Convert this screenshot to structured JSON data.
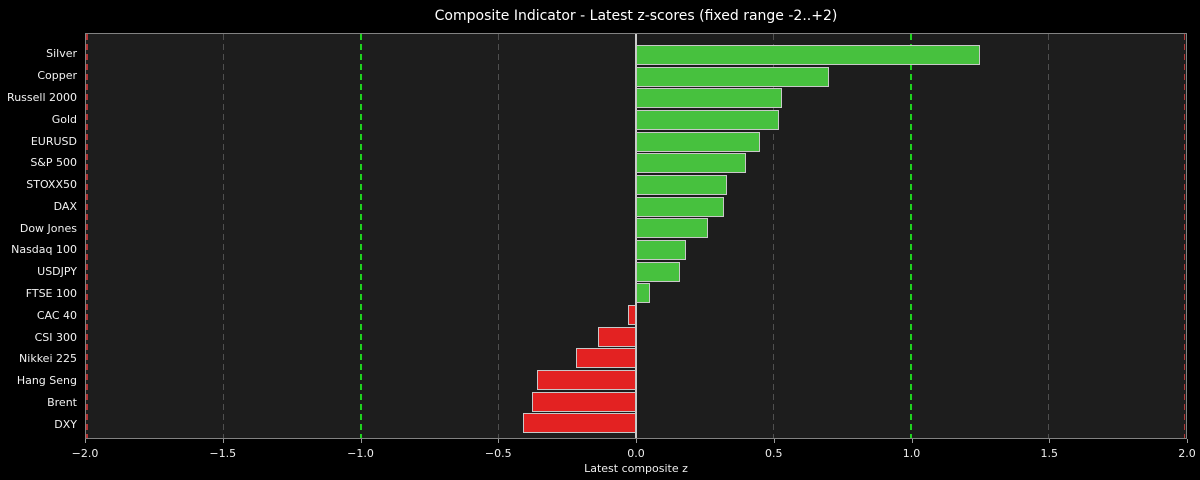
{
  "chart_data": {
    "type": "bar",
    "orientation": "horizontal",
    "title": "Composite Indicator - Latest z-scores (fixed range -2..+2)",
    "xlabel": "Latest composite z",
    "xlim": [
      -2,
      2
    ],
    "grid": "on",
    "legend": "none",
    "categories": [
      "Silver",
      "Copper",
      "Russell 2000",
      "Gold",
      "EURUSD",
      "S&P 500",
      "STOXX50",
      "DAX",
      "Dow Jones",
      "Nasdaq 100",
      "USDJPY",
      "FTSE 100",
      "CAC 40",
      "CSI 300",
      "Nikkei 225",
      "Hang Seng",
      "Brent",
      "DXY"
    ],
    "values": [
      1.25,
      0.7,
      0.53,
      0.52,
      0.45,
      0.4,
      0.33,
      0.32,
      0.26,
      0.18,
      0.16,
      0.05,
      -0.03,
      -0.14,
      -0.22,
      -0.36,
      -0.38,
      -0.41
    ],
    "x_ticks": [
      {
        "value": -2.0,
        "label": "−2.0"
      },
      {
        "value": -1.5,
        "label": "−1.5"
      },
      {
        "value": -1.0,
        "label": "−1.0"
      },
      {
        "value": -0.5,
        "label": "−0.5"
      },
      {
        "value": 0.0,
        "label": "0.0"
      },
      {
        "value": 0.5,
        "label": "0.5"
      },
      {
        "value": 1.0,
        "label": "1.0"
      },
      {
        "value": 1.5,
        "label": "1.5"
      },
      {
        "value": 2.0,
        "label": "2.0"
      }
    ],
    "gridlines": [
      -1.5,
      -0.5,
      0.5,
      1.5
    ],
    "reference_lines": [
      {
        "value": -2.0,
        "style": "dashed",
        "color": "#b23535",
        "width": 1.5
      },
      {
        "value": -1.0,
        "style": "dashed",
        "color": "#1fd41f",
        "width": 1.5
      },
      {
        "value": 0.0,
        "style": "solid",
        "color": "#cccccc",
        "width": 1.5
      },
      {
        "value": 1.0,
        "style": "dashed",
        "color": "#1fd41f",
        "width": 1.5
      },
      {
        "value": 2.0,
        "style": "dashed",
        "color": "#b23535",
        "width": 1.5
      }
    ],
    "colors": {
      "positive_bar": "#47c13e",
      "negative_bar": "#e32222",
      "bar_edge": "#c8c8c8",
      "gridline": "#4f4f4f",
      "plot_background": "#1d1d1d",
      "figure_background": "#000000",
      "text": "#ffffff"
    }
  }
}
